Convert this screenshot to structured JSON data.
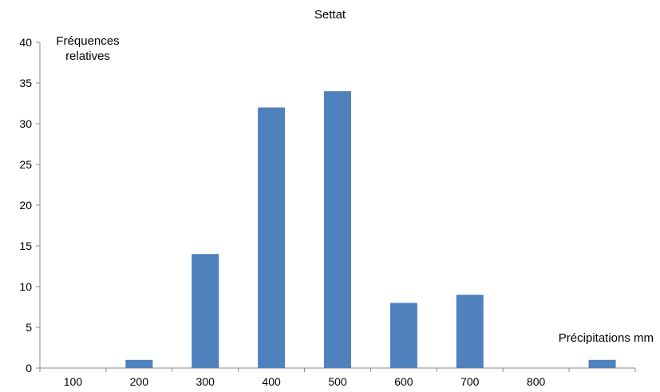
{
  "chart_data": {
    "type": "bar",
    "title": "Settat",
    "ylabel": "Fréquences relatives",
    "xlabel": "Précipitations mm",
    "categories": [
      "100",
      "200",
      "300",
      "400",
      "500",
      "600",
      "700",
      "800",
      ""
    ],
    "values": [
      0,
      1,
      14,
      32,
      34,
      8,
      9,
      0,
      1
    ],
    "ylim": [
      0,
      40
    ],
    "yticks": [
      0,
      5,
      10,
      15,
      20,
      25,
      30,
      35,
      40
    ],
    "grid": false,
    "legend": "none",
    "bar_color": "#4f81bd"
  }
}
